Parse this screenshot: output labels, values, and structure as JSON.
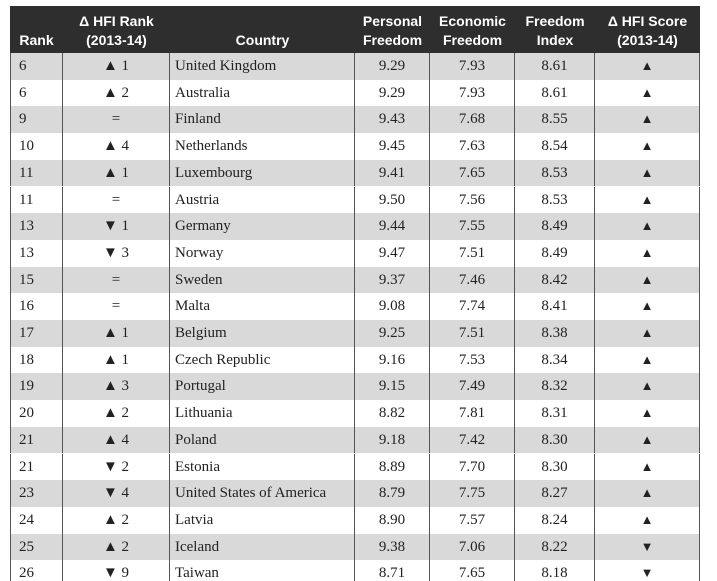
{
  "table": {
    "header": [
      [
        "Rank"
      ],
      [
        "Δ HFI Rank",
        "(2013-14)"
      ],
      [
        "Country"
      ],
      [
        "Personal",
        "Freedom"
      ],
      [
        "Economic",
        "Freedom"
      ],
      [
        "Freedom",
        "Index"
      ],
      [
        "Δ HFI Score",
        "(2013-14)"
      ]
    ],
    "rows": [
      [
        "6",
        "▲ 1",
        "United Kingdom",
        "9.29",
        "7.93",
        "8.61",
        "▲"
      ],
      [
        "6",
        "▲ 2",
        "Australia",
        "9.29",
        "7.93",
        "8.61",
        "▲"
      ],
      [
        "9",
        "=",
        "Finland",
        "9.43",
        "7.68",
        "8.55",
        "▲"
      ],
      [
        "10",
        "▲ 4",
        "Netherlands",
        "9.45",
        "7.63",
        "8.54",
        "▲"
      ],
      [
        "11",
        "▲ 1",
        "Luxembourg",
        "9.41",
        "7.65",
        "8.53",
        "▲"
      ],
      [
        "11",
        "=",
        "Austria",
        "9.50",
        "7.56",
        "8.53",
        "▲"
      ],
      [
        "13",
        "▼ 1",
        "Germany",
        "9.44",
        "7.55",
        "8.49",
        "▲"
      ],
      [
        "13",
        "▼ 3",
        "Norway",
        "9.47",
        "7.51",
        "8.49",
        "▲"
      ],
      [
        "15",
        "=",
        "Sweden",
        "9.37",
        "7.46",
        "8.42",
        "▲"
      ],
      [
        "16",
        "=",
        "Malta",
        "9.08",
        "7.74",
        "8.41",
        "▲"
      ],
      [
        "17",
        "▲ 1",
        "Belgium",
        "9.25",
        "7.51",
        "8.38",
        "▲"
      ],
      [
        "18",
        "▲ 1",
        "Czech Republic",
        "9.16",
        "7.53",
        "8.34",
        "▲"
      ],
      [
        "19",
        "▲ 3",
        "Portugal",
        "9.15",
        "7.49",
        "8.32",
        "▲"
      ],
      [
        "20",
        "▲ 2",
        "Lithuania",
        "8.82",
        "7.81",
        "8.31",
        "▲"
      ],
      [
        "21",
        "▲ 4",
        "Poland",
        "9.18",
        "7.42",
        "8.30",
        "▲"
      ],
      [
        "21",
        "▼ 2",
        "Estonia",
        "8.89",
        "7.70",
        "8.30",
        "▲"
      ],
      [
        "23",
        "▼ 4",
        "United States of America",
        "8.79",
        "7.75",
        "8.27",
        "▲"
      ],
      [
        "24",
        "▲ 2",
        "Latvia",
        "8.90",
        "7.57",
        "8.24",
        "▲"
      ],
      [
        "25",
        "▲ 2",
        "Iceland",
        "9.38",
        "7.06",
        "8.22",
        "▼"
      ],
      [
        "26",
        "▼ 9",
        "Taiwan",
        "8.71",
        "7.65",
        "8.18",
        "▼"
      ]
    ]
  }
}
